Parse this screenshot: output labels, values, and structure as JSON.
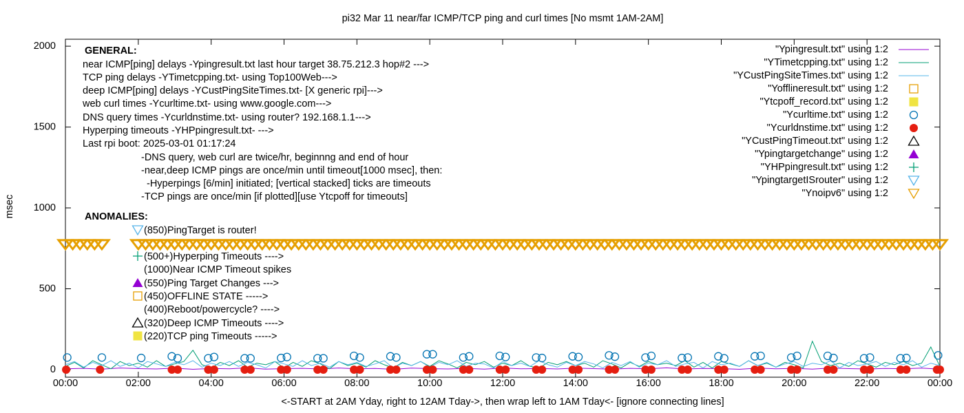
{
  "chart_data": {
    "type": "line",
    "title": "pi32 Mar 11  near/far ICMP/TCP ping and curl times [No msmt 1AM-2AM]",
    "x_label": "<-START at 2AM Yday, right to 12AM Tday->, then wrap left to 1AM Tday<- [ignore connecting lines]",
    "y_label": "msec",
    "xlim": [
      0,
      24
    ],
    "xticks": [
      {
        "value": 0,
        "label": "00:00"
      },
      {
        "value": 2,
        "label": "02:00"
      },
      {
        "value": 4,
        "label": "04:00"
      },
      {
        "value": 6,
        "label": "06:00"
      },
      {
        "value": 8,
        "label": "08:00"
      },
      {
        "value": 10,
        "label": "10:00"
      },
      {
        "value": 12,
        "label": "12:00"
      },
      {
        "value": 14,
        "label": "14:00"
      },
      {
        "value": 16,
        "label": "16:00"
      },
      {
        "value": 18,
        "label": "18:00"
      },
      {
        "value": 20,
        "label": "20:00"
      },
      {
        "value": 22,
        "label": "22:00"
      },
      {
        "value": 24,
        "label": "00:00"
      }
    ],
    "ylim": [
      -47,
      2043
    ],
    "yticks": [
      0,
      500,
      1000,
      1500,
      2000
    ],
    "grid": false,
    "legend": "top-right",
    "annotations": [
      "GENERAL:",
      "near ICMP[ping] delays -Ypingresult.txt last hour target 38.75.212.3 hop#2 --->",
      "TCP ping delays -YTimetcpping.txt- using Top100Web--->",
      "deep ICMP[ping] delays -YCustPingSiteTimes.txt- [X generic rpi]--->",
      "web curl times -Ycurltime.txt- using www.google.com--->",
      "DNS query times -Ycurldnstime.txt- using router? 192.168.1.1--->",
      "Hyperping timeouts -YHPpingresult.txt- --->",
      "Last rpi boot: 2025-03-01 01:17:24",
      "-DNS query, web curl are twice/hr, beginnng and end of hour",
      "-near,deep ICMP pings are once/min until timeout[1000 msec], then:",
      "-Hyperpings [6/min] initiated; [vertical stacked] ticks are timeouts",
      "-TCP pings are once/min [if plotted][use Ytcpoff for timeouts]",
      "ANOMALIES:",
      "(850)PingTarget is router!",
      "(500+)Hyperping Timeouts ---->",
      "(1000)Near ICMP Timeout spikes",
      "(550)Ping Target Changes --->",
      "(450)OFFLINE STATE ----->",
      "(400)Reboot/powercycle? ---->",
      "(320)Deep ICMP Timeouts ---->",
      "(220)TCP ping Timeouts ----->"
    ],
    "series": [
      {
        "name": "\"Ypingresult.txt\" using 1:2",
        "color": "#9400d3",
        "marker": "line",
        "x": [
          0,
          0.5,
          1,
          1.5,
          2,
          2.5,
          3,
          3.5,
          4,
          4.5,
          5,
          5.5,
          6,
          6.5,
          7,
          7.5,
          8,
          8.5,
          9,
          9.5,
          10,
          10.5,
          11,
          11.5,
          12,
          12.5,
          13,
          13.5,
          14,
          14.5,
          15,
          15.5,
          16,
          16.5,
          17,
          17.5,
          18,
          18.5,
          19,
          19.5,
          20,
          20.5,
          21,
          21.5,
          22,
          22.5,
          23,
          23.5,
          24
        ],
        "values": [
          5,
          8,
          3,
          10,
          6,
          4,
          9,
          2,
          7,
          5,
          11,
          3,
          6,
          8,
          4,
          10,
          5,
          7,
          2,
          9,
          6,
          4,
          8,
          3,
          10,
          5,
          7,
          4,
          9,
          6,
          3,
          8,
          5,
          11,
          4,
          7,
          6,
          2,
          9,
          5,
          8,
          3,
          10,
          6,
          4,
          7,
          5,
          9,
          3
        ]
      },
      {
        "name": "\"YTimetcpping.txt\" using 1:2",
        "color": "#009e73",
        "marker": "line",
        "x": [
          0,
          0.25,
          0.5,
          0.75,
          1,
          1.25,
          1.5,
          1.75,
          2,
          2.25,
          2.5,
          2.75,
          3,
          3.25,
          3.5,
          3.75,
          4,
          4.25,
          4.5,
          4.75,
          5,
          5.25,
          5.5,
          5.75,
          6,
          6.25,
          6.5,
          6.75,
          7,
          7.25,
          7.5,
          7.75,
          8,
          8.25,
          8.5,
          8.75,
          9,
          9.25,
          9.5,
          9.75,
          10,
          10.25,
          10.5,
          10.75,
          11,
          11.25,
          11.5,
          11.75,
          12,
          12.25,
          12.5,
          12.75,
          13,
          13.25,
          13.5,
          13.75,
          14,
          14.25,
          14.5,
          14.75,
          15,
          15.25,
          15.5,
          15.75,
          16,
          16.25,
          16.5,
          16.75,
          17,
          17.25,
          17.5,
          17.75,
          18,
          18.25,
          18.5,
          18.75,
          19,
          19.25,
          19.5,
          19.75,
          20,
          20.25,
          20.5,
          20.75,
          21,
          21.25,
          21.5,
          21.75,
          22,
          22.25,
          22.5,
          22.75,
          23,
          23.25,
          23.5,
          23.75,
          24
        ],
        "values": [
          20,
          45,
          10,
          55,
          30,
          5,
          50,
          25,
          40,
          15,
          55,
          20,
          35,
          50,
          120,
          30,
          10,
          45,
          25,
          55,
          15,
          40,
          30,
          50,
          10,
          45,
          20,
          55,
          35,
          5,
          50,
          25,
          40,
          15,
          55,
          30,
          10,
          45,
          25,
          50,
          20,
          55,
          35,
          10,
          45,
          30,
          50,
          15,
          40,
          25,
          55,
          20,
          10,
          45,
          30,
          50,
          25,
          40,
          15,
          55,
          35,
          10,
          45,
          20,
          50,
          30,
          40,
          25,
          55,
          15,
          45,
          10,
          50,
          35,
          20,
          55,
          25,
          40,
          15,
          45,
          30,
          10,
          175,
          50,
          25,
          40,
          20,
          55,
          35,
          15,
          45,
          30,
          50,
          25,
          40,
          140,
          20
        ]
      },
      {
        "name": "\"YCustPingSiteTimes.txt\" using 1:2",
        "color": "#56b4e9",
        "marker": "line",
        "x": [
          0,
          0.25,
          0.5,
          0.75,
          1,
          1.25,
          1.5,
          1.75,
          2,
          2.25,
          2.5,
          2.75,
          3,
          3.25,
          3.5,
          3.75,
          4,
          4.25,
          4.5,
          4.75,
          5,
          5.25,
          5.5,
          5.75,
          6,
          6.25,
          6.5,
          6.75,
          7,
          7.25,
          7.5,
          7.75,
          8,
          8.25,
          8.5,
          8.75,
          9,
          9.25,
          9.5,
          9.75,
          10,
          10.25,
          10.5,
          10.75,
          11,
          11.25,
          11.5,
          11.75,
          12,
          12.25,
          12.5,
          12.75,
          13,
          13.25,
          13.5,
          13.75,
          14,
          14.25,
          14.5,
          14.75,
          15,
          15.25,
          15.5,
          15.75,
          16,
          16.25,
          16.5,
          16.75,
          17,
          17.25,
          17.5,
          17.75,
          18,
          18.25,
          18.5,
          18.75,
          19,
          19.25,
          19.5,
          19.75,
          20,
          20.25,
          20.5,
          20.75,
          21,
          21.25,
          21.5,
          21.75,
          22,
          22.25,
          22.5,
          22.75,
          23,
          23.25,
          23.5,
          23.75,
          24
        ],
        "values": [
          30,
          50,
          15,
          45,
          25,
          55,
          20,
          40,
          10,
          50,
          35,
          20,
          45,
          30,
          55,
          15,
          40,
          25,
          50,
          20,
          45,
          30,
          10,
          50,
          35,
          20,
          55,
          25,
          40,
          15,
          50,
          30,
          45,
          20,
          35,
          55,
          10,
          40,
          25,
          50,
          15,
          45,
          30,
          55,
          20,
          40,
          35,
          10,
          50,
          25,
          40,
          20,
          55,
          30,
          15,
          45,
          25,
          50,
          35,
          10,
          45,
          25,
          50,
          15,
          40,
          30,
          55,
          20,
          35,
          45,
          10,
          50,
          30,
          40,
          20,
          55,
          25,
          45,
          15,
          35,
          50,
          20,
          40,
          30,
          55,
          10,
          45,
          25,
          35,
          50,
          20,
          45,
          30,
          55,
          15,
          40,
          25
        ]
      },
      {
        "name": "\"Yofflineresult.txt\" using 1:2",
        "color": "#e69f00",
        "marker": "open-square",
        "x": [],
        "values": []
      },
      {
        "name": "\"Ytcpoff_record.txt\" using 1:2",
        "color": "#f0e442",
        "marker": "filled-square",
        "x": [],
        "values": []
      },
      {
        "name": "\"Ycurltime.txt\" using 1:2",
        "color": "#0072b2",
        "marker": "open-circle",
        "x": [
          0.05,
          1,
          2.08,
          2.92,
          3.08,
          3.92,
          4.08,
          4.92,
          5.08,
          5.92,
          6.08,
          6.92,
          7.08,
          7.92,
          8.08,
          8.92,
          9.08,
          9.92,
          10.08,
          10.92,
          11.08,
          11.92,
          12.08,
          12.92,
          13.08,
          13.92,
          14.08,
          14.92,
          15.08,
          15.92,
          16.08,
          16.92,
          17.08,
          17.92,
          18.08,
          18.92,
          19.08,
          19.92,
          20.08,
          20.92,
          21.08,
          21.92,
          22.08,
          22.92,
          23.08,
          23.95
        ],
        "values": [
          75,
          75,
          72,
          82,
          70,
          70,
          78,
          70,
          70,
          72,
          78,
          70,
          70,
          85,
          75,
          82,
          75,
          95,
          95,
          75,
          82,
          85,
          78,
          75,
          72,
          82,
          78,
          88,
          80,
          75,
          85,
          72,
          75,
          82,
          70,
          82,
          85,
          75,
          85,
          85,
          72,
          70,
          75,
          70,
          72,
          88
        ]
      },
      {
        "name": "\"Ycurldnstime.txt\" using 1:2",
        "color": "#e51e10",
        "marker": "filled-circle",
        "x": [
          0.02,
          0.95,
          2.92,
          3.08,
          3.92,
          4.08,
          4.92,
          5.08,
          5.92,
          6.08,
          6.92,
          7.08,
          7.92,
          8.08,
          8.92,
          9.08,
          9.92,
          10.08,
          10.92,
          11.08,
          11.92,
          12.08,
          12.92,
          13.08,
          13.92,
          14.08,
          14.92,
          15.08,
          15.92,
          16.08,
          16.92,
          17.08,
          17.92,
          18.08,
          18.92,
          19.08,
          19.92,
          20.08,
          20.92,
          21.08,
          21.92,
          22.08,
          22.92,
          23.08,
          23.92,
          24
        ],
        "values": [
          0,
          0,
          0,
          0,
          0,
          0,
          0,
          0,
          0,
          0,
          0,
          0,
          0,
          0,
          0,
          0,
          0,
          0,
          0,
          0,
          0,
          0,
          0,
          0,
          0,
          0,
          0,
          0,
          0,
          0,
          0,
          0,
          0,
          0,
          0,
          0,
          0,
          0,
          0,
          0,
          0,
          0,
          0,
          0,
          0,
          0
        ]
      },
      {
        "name": "\"YCustPingTimeout.txt\" using 1:2",
        "color": "#000000",
        "marker": "open-triangle",
        "x": [],
        "values": []
      },
      {
        "name": "\"Ypingtargetchange\" using 1:2",
        "color": "#9400d3",
        "marker": "filled-triangle",
        "x": [],
        "values": []
      },
      {
        "name": "\"YHPpingresult.txt\" using 1:2",
        "color": "#009e73",
        "marker": "plus",
        "x": [],
        "values": []
      },
      {
        "name": "\"YpingtargetISrouter\" using 1:2",
        "color": "#56b4e9",
        "marker": "open-down-triangle",
        "x": [],
        "values": []
      },
      {
        "name": "\"Ynoipv6\" using 1:2",
        "color": "#e69f00",
        "marker": "open-down-triangle",
        "x": [
          0,
          0.2,
          0.4,
          0.6,
          0.8,
          1,
          2,
          2.2,
          2.4,
          2.6,
          2.8,
          3,
          3.2,
          3.4,
          3.6,
          3.8,
          4,
          4.2,
          4.4,
          4.6,
          4.8,
          5,
          5.2,
          5.4,
          5.6,
          5.8,
          6,
          6.2,
          6.4,
          6.6,
          6.8,
          7,
          7.2,
          7.4,
          7.6,
          7.8,
          8,
          8.2,
          8.4,
          8.6,
          8.8,
          9,
          9.2,
          9.4,
          9.6,
          9.8,
          10,
          10.2,
          10.4,
          10.6,
          10.8,
          11,
          11.2,
          11.4,
          11.6,
          11.8,
          12,
          12.2,
          12.4,
          12.6,
          12.8,
          13,
          13.2,
          13.4,
          13.6,
          13.8,
          14,
          14.2,
          14.4,
          14.6,
          14.8,
          15,
          15.2,
          15.4,
          15.6,
          15.8,
          16,
          16.2,
          16.4,
          16.6,
          16.8,
          17,
          17.2,
          17.4,
          17.6,
          17.8,
          18,
          18.2,
          18.4,
          18.6,
          18.8,
          19,
          19.2,
          19.4,
          19.6,
          19.8,
          20,
          20.2,
          20.4,
          20.6,
          20.8,
          21,
          21.2,
          21.4,
          21.6,
          21.8,
          22,
          22.2,
          22.4,
          22.6,
          22.8,
          23,
          23.2,
          23.4,
          23.6,
          23.8,
          24
        ],
        "values": [
          775,
          775,
          775,
          775,
          775,
          775,
          775,
          775,
          775,
          775,
          775,
          775,
          775,
          775,
          775,
          775,
          775,
          775,
          775,
          775,
          775,
          775,
          775,
          775,
          775,
          775,
          775,
          775,
          775,
          775,
          775,
          775,
          775,
          775,
          775,
          775,
          775,
          775,
          775,
          775,
          775,
          775,
          775,
          775,
          775,
          775,
          775,
          775,
          775,
          775,
          775,
          775,
          775,
          775,
          775,
          775,
          775,
          775,
          775,
          775,
          775,
          775,
          775,
          775,
          775,
          775,
          775,
          775,
          775,
          775,
          775,
          775,
          775,
          775,
          775,
          775,
          775,
          775,
          775,
          775,
          775,
          775,
          775,
          775,
          775,
          775,
          775,
          775,
          775,
          775,
          775,
          775,
          775,
          775,
          775,
          775,
          775,
          775,
          775,
          775,
          775,
          775,
          775,
          775,
          775,
          775,
          775,
          775,
          775,
          775,
          775,
          775,
          775,
          775,
          775,
          775,
          775
        ]
      }
    ]
  }
}
